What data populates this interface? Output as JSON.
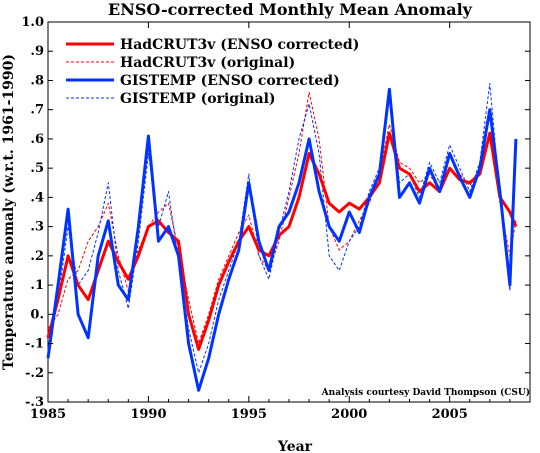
{
  "chart_data": {
    "type": "line",
    "title": "ENSO-corrected Monthly Mean Anomaly",
    "xlabel": "Year",
    "ylabel": "Temperature anomaly (w.r.t. 1961-1990)",
    "xlim": [
      1985,
      2009
    ],
    "ylim": [
      -0.3,
      1.0
    ],
    "x_ticks": [
      1985,
      1990,
      1995,
      2000,
      2005
    ],
    "x_tick_labels": [
      "1985",
      "1990",
      "1995",
      "2000",
      "2005"
    ],
    "y_ticks": [
      -0.3,
      -0.2,
      -0.1,
      0.0,
      0.1,
      0.2,
      0.3,
      0.4,
      0.5,
      0.6,
      0.7,
      0.8,
      0.9,
      1.0
    ],
    "y_tick_labels": [
      "-.3",
      "-.2",
      "-.1",
      "0.",
      ".1",
      ".2",
      ".3",
      ".4",
      ".5",
      ".6",
      ".7",
      ".8",
      ".9",
      "1.0"
    ],
    "legend_position": "top-left",
    "annotation": "Analysis courtesy David Thompson (CSU)",
    "series": [
      {
        "name": "HadCRUT3v (ENSO corrected)",
        "color": "#ff0000",
        "style": "solid",
        "x": [
          1985.0,
          1985.5,
          1986.0,
          1986.5,
          1987.0,
          1987.5,
          1988.0,
          1988.5,
          1989.0,
          1989.5,
          1990.0,
          1990.5,
          1991.0,
          1991.5,
          1992.0,
          1992.5,
          1993.0,
          1993.5,
          1994.0,
          1994.5,
          1995.0,
          1995.5,
          1996.0,
          1996.5,
          1997.0,
          1997.5,
          1998.0,
          1998.5,
          1999.0,
          1999.5,
          2000.0,
          2000.5,
          2001.0,
          2001.5,
          2002.0,
          2002.5,
          2003.0,
          2003.5,
          2004.0,
          2004.5,
          2005.0,
          2005.5,
          2006.0,
          2006.5,
          2007.0,
          2007.5,
          2008.0,
          2008.3
        ],
        "y": [
          -0.08,
          0.05,
          0.2,
          0.1,
          0.05,
          0.15,
          0.25,
          0.18,
          0.12,
          0.2,
          0.3,
          0.32,
          0.28,
          0.25,
          0.0,
          -0.12,
          -0.02,
          0.1,
          0.18,
          0.25,
          0.3,
          0.22,
          0.2,
          0.27,
          0.3,
          0.4,
          0.55,
          0.48,
          0.38,
          0.35,
          0.38,
          0.36,
          0.4,
          0.45,
          0.62,
          0.5,
          0.48,
          0.42,
          0.45,
          0.42,
          0.5,
          0.46,
          0.45,
          0.48,
          0.62,
          0.4,
          0.35,
          0.3
        ]
      },
      {
        "name": "HadCRUT3v (original)",
        "color": "#ff0000",
        "style": "dashed",
        "x": [
          1985.0,
          1985.5,
          1986.0,
          1986.5,
          1987.0,
          1987.5,
          1988.0,
          1988.5,
          1989.0,
          1989.5,
          1990.0,
          1990.5,
          1991.0,
          1991.5,
          1992.0,
          1992.5,
          1993.0,
          1993.5,
          1994.0,
          1994.5,
          1995.0,
          1995.5,
          1996.0,
          1996.5,
          1997.0,
          1997.5,
          1998.0,
          1998.5,
          1999.0,
          1999.5,
          2000.0,
          2000.5,
          2001.0,
          2001.5,
          2002.0,
          2002.5,
          2003.0,
          2003.5,
          2004.0,
          2004.5,
          2005.0,
          2005.5,
          2006.0,
          2006.5,
          2007.0,
          2007.5,
          2008.0,
          2008.3
        ],
        "y": [
          -0.05,
          0.0,
          0.12,
          0.15,
          0.25,
          0.3,
          0.38,
          0.2,
          0.08,
          0.22,
          0.3,
          0.35,
          0.38,
          0.22,
          0.05,
          -0.1,
          0.0,
          0.12,
          0.2,
          0.28,
          0.34,
          0.2,
          0.15,
          0.25,
          0.4,
          0.55,
          0.76,
          0.6,
          0.3,
          0.22,
          0.25,
          0.32,
          0.38,
          0.48,
          0.65,
          0.52,
          0.5,
          0.45,
          0.48,
          0.42,
          0.55,
          0.48,
          0.44,
          0.5,
          0.7,
          0.38,
          0.2,
          0.32
        ]
      },
      {
        "name": "GISTEMP (ENSO corrected)",
        "color": "#0033ff",
        "style": "solid",
        "x": [
          1985.0,
          1985.5,
          1986.0,
          1986.5,
          1987.0,
          1987.5,
          1988.0,
          1988.5,
          1989.0,
          1989.5,
          1990.0,
          1990.5,
          1991.0,
          1991.5,
          1992.0,
          1992.5,
          1993.0,
          1993.5,
          1994.0,
          1994.5,
          1995.0,
          1995.5,
          1996.0,
          1996.5,
          1997.0,
          1997.5,
          1998.0,
          1998.5,
          1999.0,
          1999.5,
          2000.0,
          2000.5,
          2001.0,
          2001.5,
          2002.0,
          2002.5,
          2003.0,
          2003.5,
          2004.0,
          2004.5,
          2005.0,
          2005.5,
          2006.0,
          2006.5,
          2007.0,
          2007.5,
          2008.0,
          2008.3
        ],
        "y": [
          -0.15,
          0.1,
          0.36,
          0.0,
          -0.08,
          0.2,
          0.32,
          0.1,
          0.05,
          0.3,
          0.61,
          0.25,
          0.3,
          0.2,
          -0.1,
          -0.26,
          -0.15,
          0.0,
          0.12,
          0.22,
          0.45,
          0.25,
          0.15,
          0.3,
          0.35,
          0.45,
          0.6,
          0.42,
          0.3,
          0.25,
          0.35,
          0.28,
          0.4,
          0.48,
          0.77,
          0.4,
          0.45,
          0.38,
          0.5,
          0.42,
          0.55,
          0.47,
          0.4,
          0.5,
          0.7,
          0.42,
          0.1,
          0.6
        ]
      },
      {
        "name": "GISTEMP (original)",
        "color": "#0033ff",
        "style": "dashed",
        "x": [
          1985.0,
          1985.5,
          1986.0,
          1986.5,
          1987.0,
          1987.5,
          1988.0,
          1988.5,
          1989.0,
          1989.5,
          1990.0,
          1990.5,
          1991.0,
          1991.5,
          1992.0,
          1992.5,
          1993.0,
          1993.5,
          1994.0,
          1994.5,
          1995.0,
          1995.5,
          1996.0,
          1996.5,
          1997.0,
          1997.5,
          1998.0,
          1998.5,
          1999.0,
          1999.5,
          2000.0,
          2000.5,
          2001.0,
          2001.5,
          2002.0,
          2002.5,
          2003.0,
          2003.5,
          2004.0,
          2004.5,
          2005.0,
          2005.5,
          2006.0,
          2006.5,
          2007.0,
          2007.5,
          2008.0,
          2008.3
        ],
        "y": [
          -0.12,
          0.05,
          0.3,
          0.1,
          0.15,
          0.28,
          0.45,
          0.15,
          0.02,
          0.25,
          0.55,
          0.3,
          0.42,
          0.18,
          -0.05,
          -0.2,
          -0.1,
          0.05,
          0.15,
          0.25,
          0.48,
          0.2,
          0.12,
          0.28,
          0.42,
          0.6,
          0.72,
          0.55,
          0.2,
          0.15,
          0.25,
          0.3,
          0.42,
          0.5,
          0.75,
          0.45,
          0.48,
          0.4,
          0.52,
          0.45,
          0.58,
          0.5,
          0.42,
          0.52,
          0.79,
          0.4,
          0.08,
          0.55
        ]
      }
    ]
  }
}
